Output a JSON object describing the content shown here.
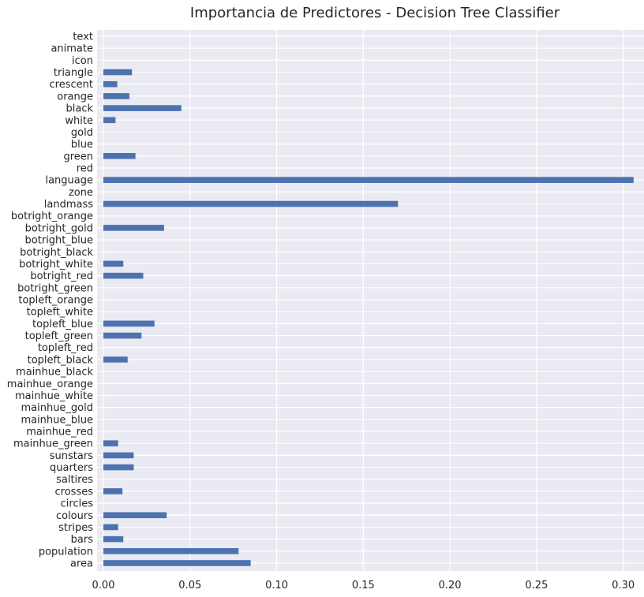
{
  "chart_data": {
    "type": "bar",
    "orientation": "horizontal",
    "title": "Importancia de Predictores - Decision Tree Classifier",
    "xlabel": "",
    "ylabel": "",
    "xlim": [
      0,
      0.312
    ],
    "xticks": [
      0.0,
      0.05,
      0.1,
      0.15,
      0.2,
      0.25,
      0.3
    ],
    "xtick_labels": [
      "0.00",
      "0.05",
      "0.10",
      "0.15",
      "0.20",
      "0.25",
      "0.30"
    ],
    "grid": true,
    "bar_color": "#4c72b0",
    "background_color": "#eaeaf2",
    "categories": [
      "area",
      "population",
      "bars",
      "stripes",
      "colours",
      "circles",
      "crosses",
      "saltires",
      "quarters",
      "sunstars",
      "mainhue_green",
      "mainhue_red",
      "mainhue_blue",
      "mainhue_gold",
      "mainhue_white",
      "mainhue_orange",
      "mainhue_black",
      "topleft_black",
      "topleft_red",
      "topleft_green",
      "topleft_blue",
      "topleft_white",
      "topleft_orange",
      "botright_green",
      "botright_red",
      "botright_white",
      "botright_black",
      "botright_blue",
      "botright_gold",
      "botright_orange",
      "landmass",
      "zone",
      "language",
      "red",
      "green",
      "blue",
      "gold",
      "white",
      "black",
      "orange",
      "crescent",
      "triangle",
      "icon",
      "animate",
      "text"
    ],
    "values": [
      0.085,
      0.078,
      0.0115,
      0.0085,
      0.0365,
      0.0,
      0.011,
      0.0,
      0.0175,
      0.0175,
      0.0085,
      0.0,
      0.0,
      0.0,
      0.0,
      0.0,
      0.0,
      0.014,
      0.0,
      0.022,
      0.0295,
      0.0,
      0.0,
      0.0,
      0.023,
      0.0115,
      0.0,
      0.0,
      0.035,
      0.0,
      0.17,
      0.0,
      0.306,
      0.0,
      0.0185,
      0.0,
      0.0,
      0.007,
      0.045,
      0.015,
      0.008,
      0.0165,
      0.0,
      0.0,
      0.0
    ]
  }
}
